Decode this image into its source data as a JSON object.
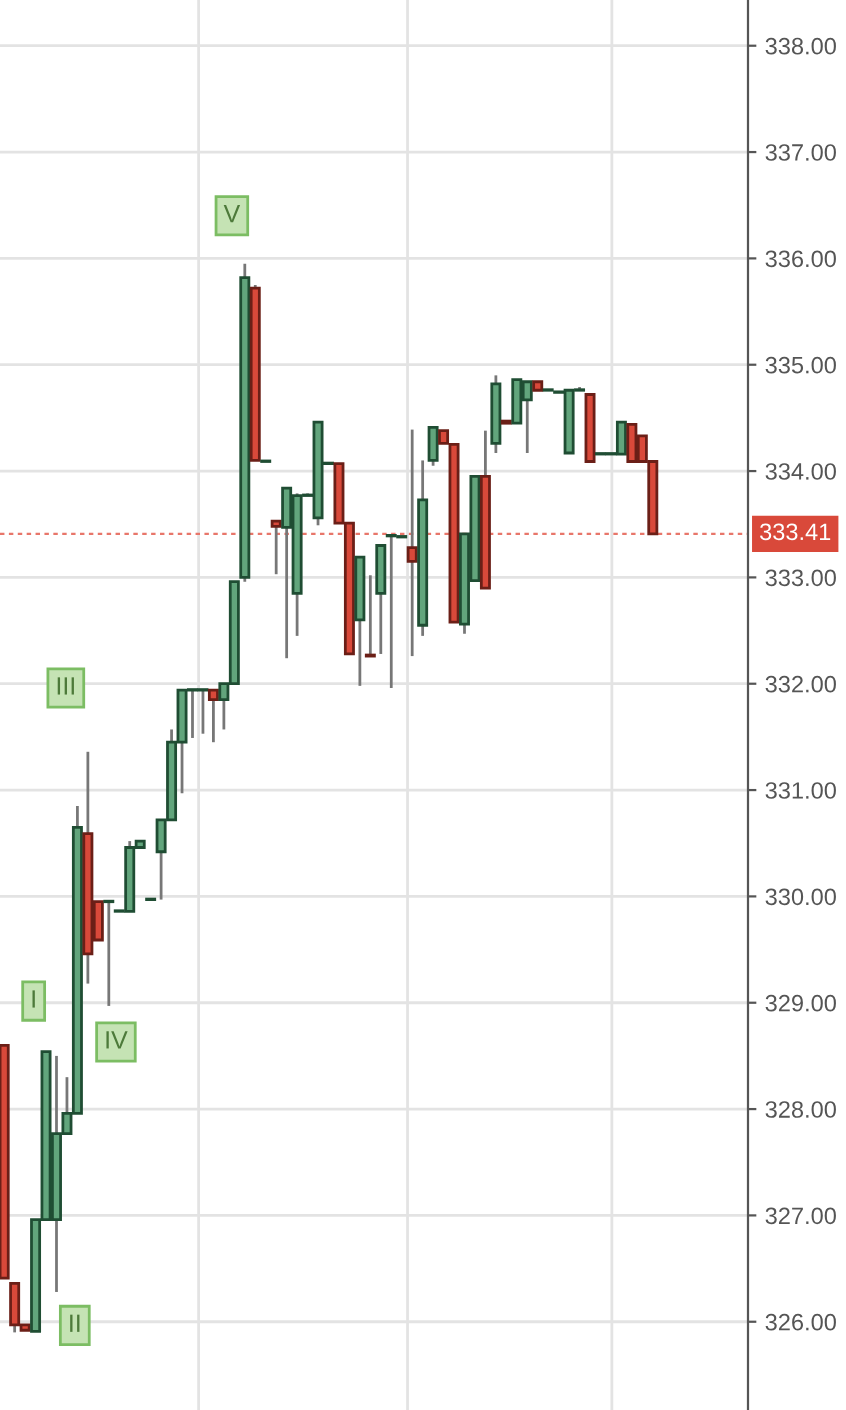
{
  "chart_data": {
    "type": "candlestick",
    "categories": [
      null,
      null,
      null,
      null,
      null,
      null,
      null,
      null,
      null,
      null,
      null,
      null,
      null,
      null,
      null,
      null,
      null,
      null,
      null,
      null,
      null,
      null,
      null,
      null,
      null,
      null,
      null,
      null,
      null,
      null,
      null,
      null,
      null,
      null,
      null,
      null,
      null,
      null,
      null,
      null,
      null,
      null,
      null,
      null,
      null,
      null,
      null,
      null,
      null,
      null,
      null,
      null,
      null,
      null,
      null,
      null,
      null,
      null,
      null,
      null,
      null,
      null,
      null
    ],
    "ohlc": [
      [
        328.6,
        328.6,
        326.41,
        326.41
      ],
      [
        326.36,
        326.36,
        325.9,
        325.97
      ],
      [
        325.97,
        325.97,
        325.92,
        325.92
      ],
      [
        325.91,
        326.96,
        325.91,
        326.96
      ],
      [
        326.96,
        328.54,
        326.96,
        328.54
      ],
      [
        326.96,
        328.5,
        326.28,
        327.77
      ],
      [
        327.77,
        328.3,
        327.77,
        327.96
      ],
      [
        327.96,
        330.85,
        327.96,
        330.65
      ],
      [
        330.59,
        331.36,
        329.18,
        329.46
      ],
      [
        329.95,
        329.95,
        329.59,
        329.59
      ],
      [
        329.95,
        329.95,
        328.97,
        329.95
      ],
      [
        329.86,
        329.86,
        329.86,
        329.86
      ],
      [
        329.86,
        330.52,
        329.86,
        330.46
      ],
      [
        330.46,
        330.52,
        330.46,
        330.52
      ],
      [
        329.97,
        329.97,
        329.97,
        329.97
      ],
      [
        330.42,
        330.72,
        329.97,
        330.72
      ],
      [
        330.72,
        331.57,
        330.72,
        331.45
      ],
      [
        331.45,
        331.94,
        330.97,
        331.94
      ],
      [
        331.94,
        331.94,
        331.49,
        331.94
      ],
      [
        331.94,
        331.94,
        331.53,
        331.94
      ],
      [
        331.94,
        331.94,
        331.45,
        331.85
      ],
      [
        331.85,
        332.0,
        331.57,
        332.0
      ],
      [
        332.0,
        332.96,
        332.0,
        332.96
      ],
      [
        333.0,
        335.95,
        332.96,
        335.82
      ],
      [
        335.72,
        335.75,
        334.1,
        334.1
      ],
      [
        334.09,
        334.09,
        334.09,
        334.09
      ],
      [
        333.53,
        333.53,
        333.03,
        333.48
      ],
      [
        333.47,
        333.84,
        332.24,
        333.84
      ],
      [
        332.85,
        333.79,
        332.45,
        333.77
      ],
      [
        333.77,
        333.79,
        333.77,
        333.77
      ],
      [
        333.56,
        334.46,
        333.49,
        334.46
      ],
      [
        334.07,
        334.07,
        334.07,
        334.07
      ],
      [
        334.07,
        334.07,
        333.51,
        333.51
      ],
      [
        333.51,
        333.51,
        332.28,
        332.28
      ],
      [
        332.6,
        333.19,
        331.98,
        333.19
      ],
      [
        332.27,
        333.02,
        332.26,
        332.26
      ],
      [
        332.85,
        333.3,
        332.28,
        333.3
      ],
      [
        333.39,
        333.39,
        331.96,
        333.39
      ],
      [
        333.38,
        333.38,
        333.38,
        333.38
      ],
      [
        333.28,
        334.39,
        332.26,
        333.15
      ],
      [
        332.55,
        334.1,
        332.45,
        333.73
      ],
      [
        334.1,
        334.41,
        334.05,
        334.41
      ],
      [
        334.38,
        334.38,
        334.26,
        334.26
      ],
      [
        334.25,
        334.25,
        332.58,
        332.58
      ],
      [
        332.56,
        333.41,
        332.47,
        333.41
      ],
      [
        332.97,
        333.95,
        332.97,
        333.95
      ],
      [
        333.95,
        334.38,
        332.9,
        332.9
      ],
      [
        334.26,
        334.9,
        334.17,
        334.82
      ],
      [
        334.47,
        334.47,
        334.45,
        334.45
      ],
      [
        334.45,
        334.86,
        334.45,
        334.86
      ],
      [
        334.67,
        334.84,
        334.17,
        334.84
      ],
      [
        334.84,
        334.84,
        334.76,
        334.76
      ],
      [
        334.76,
        334.76,
        334.76,
        334.76
      ],
      [
        334.74,
        334.74,
        334.74,
        334.74
      ],
      [
        334.17,
        334.76,
        334.17,
        334.76
      ],
      [
        334.76,
        334.79,
        334.76,
        334.76
      ],
      [
        334.72,
        334.72,
        334.09,
        334.09
      ],
      [
        334.16,
        334.16,
        334.16,
        334.16
      ],
      [
        334.16,
        334.16,
        334.16,
        334.16
      ],
      [
        334.16,
        334.46,
        334.16,
        334.46
      ],
      [
        334.44,
        334.44,
        334.09,
        334.09
      ],
      [
        334.33,
        334.33,
        334.09,
        334.09
      ],
      [
        334.09,
        334.09,
        333.41,
        333.41
      ]
    ],
    "ylim": [
      325.17,
      338.43
    ],
    "yticks": [
      {
        "value": 326,
        "label": "326.00"
      },
      {
        "value": 327,
        "label": "327.00"
      },
      {
        "value": 328,
        "label": "328.00"
      },
      {
        "value": 329,
        "label": "329.00"
      },
      {
        "value": 330,
        "label": "330.00"
      },
      {
        "value": 331,
        "label": "331.00"
      },
      {
        "value": 332,
        "label": "332.00"
      },
      {
        "value": 333,
        "label": "333.00"
      },
      {
        "value": 334,
        "label": "334.00"
      },
      {
        "value": 335,
        "label": "335.00"
      },
      {
        "value": 336,
        "label": "336.00"
      },
      {
        "value": 337,
        "label": "337.00"
      },
      {
        "value": 338,
        "label": "338.00"
      }
    ],
    "ref_lines": [
      {
        "axis": "y",
        "value": 333.41,
        "label": "333.41",
        "color": "#e8766a",
        "line_style": "dotted"
      }
    ],
    "annotations": [
      "I",
      "II",
      "III",
      "IV",
      "V"
    ],
    "grid": true,
    "tick_labels": "y"
  }
}
